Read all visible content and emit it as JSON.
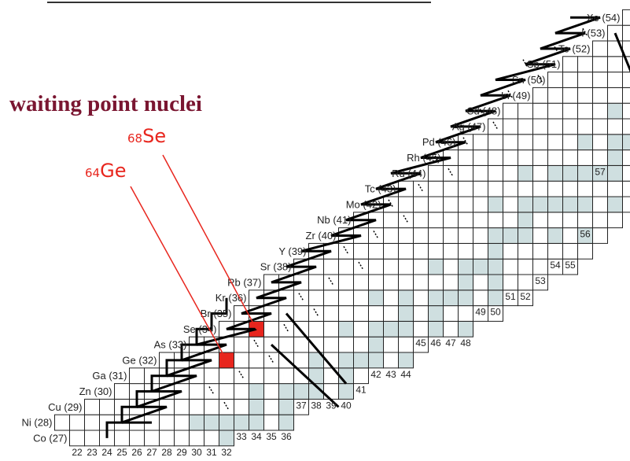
{
  "title": "waiting point nuclei",
  "callouts": [
    {
      "mass": "68",
      "symbol": "Se",
      "element_z": 34,
      "neutrons": 34
    },
    {
      "mass": "64",
      "symbol": "Ge",
      "element_z": 32,
      "neutrons": 32
    }
  ],
  "elements": [
    {
      "z": 27,
      "label": "Co (27)"
    },
    {
      "z": 28,
      "label": "Ni (28)"
    },
    {
      "z": 29,
      "label": "Cu (29)"
    },
    {
      "z": 30,
      "label": "Zn (30)"
    },
    {
      "z": 31,
      "label": "Ga (31)"
    },
    {
      "z": 32,
      "label": "Ge (32)"
    },
    {
      "z": 33,
      "label": "As (33)"
    },
    {
      "z": 34,
      "label": "Se (34)"
    },
    {
      "z": 35,
      "label": "Br (35)"
    },
    {
      "z": 36,
      "label": "Kr (36)"
    },
    {
      "z": 37,
      "label": "Rb (37)"
    },
    {
      "z": 38,
      "label": "Sr (38)"
    },
    {
      "z": 39,
      "label": "Y (39)"
    },
    {
      "z": 40,
      "label": "Zr (40)"
    },
    {
      "z": 41,
      "label": "Nb (41)"
    },
    {
      "z": 42,
      "label": "Mo (42)"
    },
    {
      "z": 43,
      "label": "Tc (43)"
    },
    {
      "z": 44,
      "label": "Ru (44)"
    },
    {
      "z": 45,
      "label": "Rh (45)"
    },
    {
      "z": 46,
      "label": "Pd (46)"
    },
    {
      "z": 47,
      "label": "Ag (47)"
    },
    {
      "z": 48,
      "label": "Cd (48)"
    },
    {
      "z": 49,
      "label": "In (49)"
    },
    {
      "z": 50,
      "label": "Sn (50)"
    },
    {
      "z": 51,
      "label": "Sb (51)"
    },
    {
      "z": 52,
      "label": "Te (52)"
    },
    {
      "z": 53,
      "label": "I (53)"
    },
    {
      "z": 54,
      "label": "Xe (54)"
    }
  ],
  "neutron_labels": [
    {
      "n": 22,
      "text": "22",
      "row": 27
    },
    {
      "n": 23,
      "text": "23",
      "row": 27
    },
    {
      "n": 24,
      "text": "24",
      "row": 27
    },
    {
      "n": 25,
      "text": "25",
      "row": 27
    },
    {
      "n": 26,
      "text": "26",
      "row": 27
    },
    {
      "n": 27,
      "text": "27",
      "row": 27
    },
    {
      "n": 28,
      "text": "28",
      "row": 27
    },
    {
      "n": 29,
      "text": "29",
      "row": 27
    },
    {
      "n": 30,
      "text": "30",
      "row": 27
    },
    {
      "n": 31,
      "text": "31",
      "row": 27
    },
    {
      "n": 32,
      "text": "32",
      "row": 27
    },
    {
      "n": 33,
      "text": "33",
      "row": 28
    },
    {
      "n": 34,
      "text": "34",
      "row": 28
    },
    {
      "n": 35,
      "text": "35",
      "row": 28
    },
    {
      "n": 36,
      "text": "36",
      "row": 28
    },
    {
      "n": 37,
      "text": "37",
      "row": 30
    },
    {
      "n": 38,
      "text": "38",
      "row": 30
    },
    {
      "n": 39,
      "text": "39",
      "row": 30
    },
    {
      "n": 40,
      "text": "40",
      "row": 30
    },
    {
      "n": 41,
      "text": "41",
      "row": 31
    },
    {
      "n": 42,
      "text": "42",
      "row": 32
    },
    {
      "n": 43,
      "text": "43",
      "row": 32
    },
    {
      "n": 44,
      "text": "44",
      "row": 32
    },
    {
      "n": 45,
      "text": "45",
      "row": 34
    },
    {
      "n": 46,
      "text": "46",
      "row": 34
    },
    {
      "n": 47,
      "text": "47",
      "row": 34
    },
    {
      "n": 48,
      "text": "48",
      "row": 34
    },
    {
      "n": 49,
      "text": "49",
      "row": 36
    },
    {
      "n": 50,
      "text": "50",
      "row": 36
    },
    {
      "n": 51,
      "text": "51",
      "row": 37
    },
    {
      "n": 52,
      "text": "52",
      "row": 37
    },
    {
      "n": 53,
      "text": "53",
      "row": 38
    },
    {
      "n": 54,
      "text": "54",
      "row": 39
    },
    {
      "n": 55,
      "text": "55",
      "row": 39
    },
    {
      "n": 56,
      "text": "56",
      "row": 41
    },
    {
      "n": 57,
      "text": "57",
      "row": 45
    }
  ],
  "colors": {
    "stable_fill": "#cfdfe0",
    "waiting_point_fill": "#e8261e",
    "title_color": "#7a1631",
    "cell_border": "#222222"
  }
}
